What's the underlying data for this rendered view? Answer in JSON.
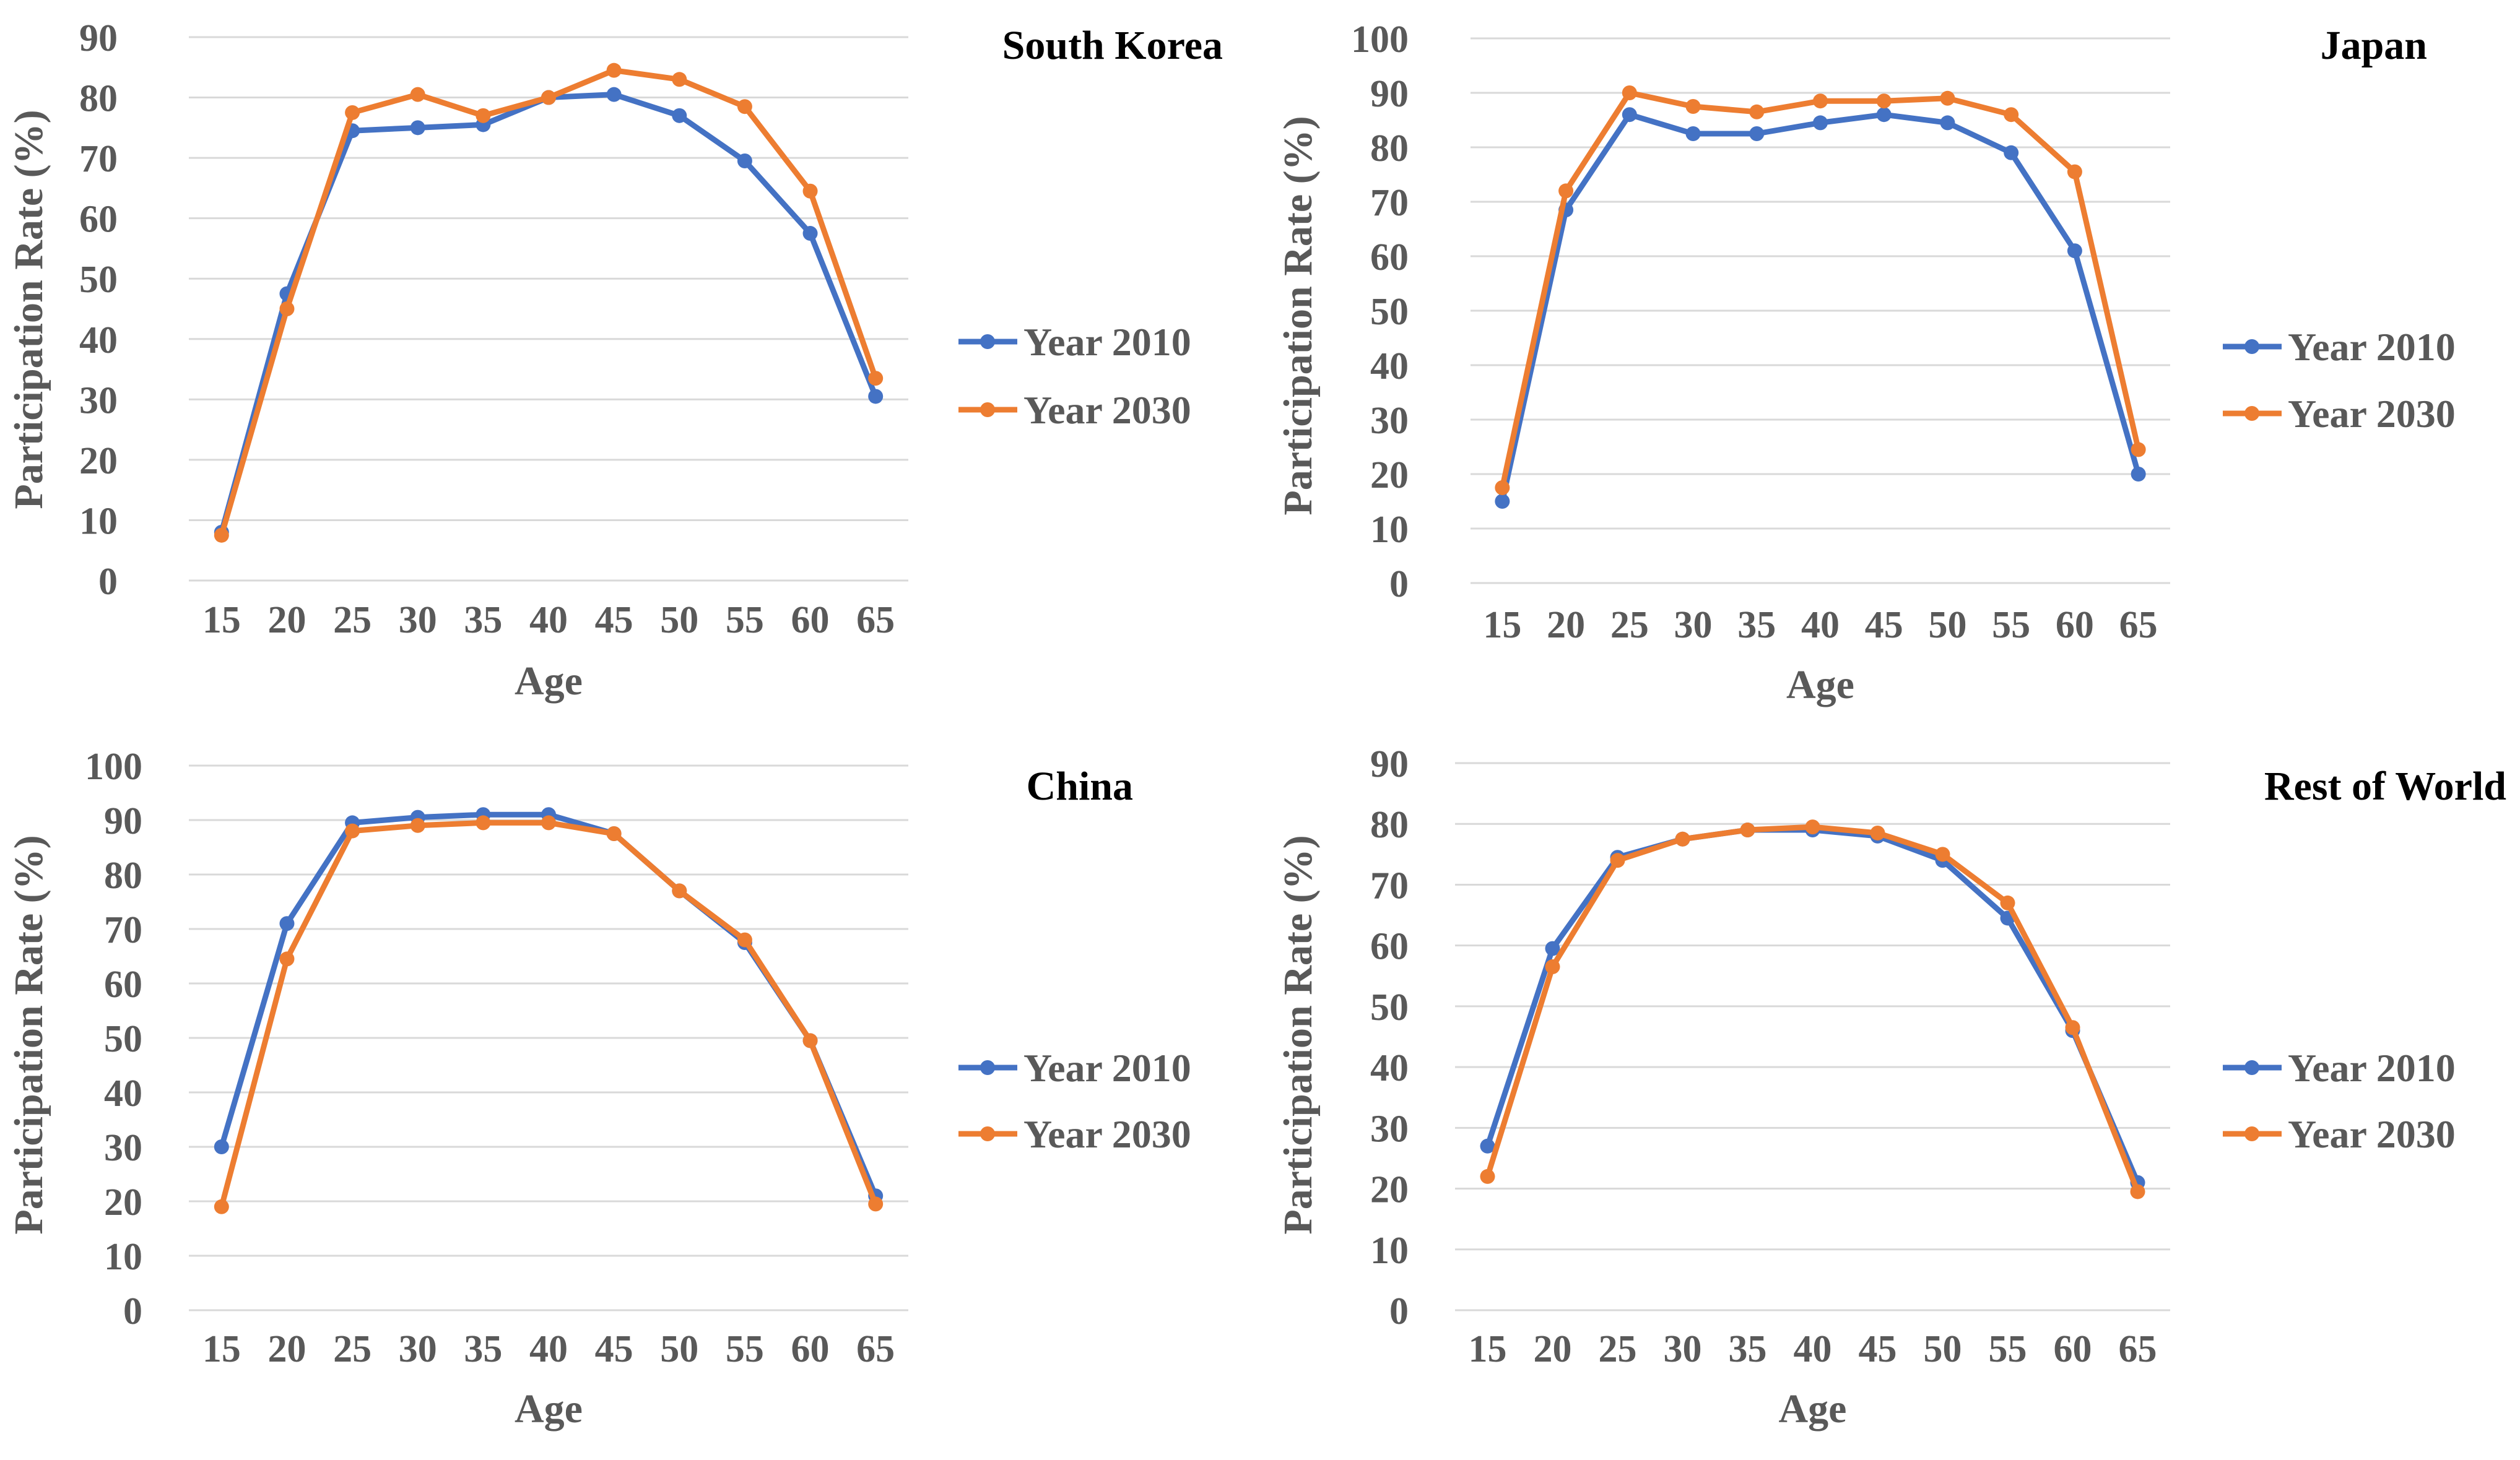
{
  "colors": {
    "year2010": "#4472C4",
    "year2030": "#ED7D31",
    "grid": "#D9D9D9",
    "text": "#595959",
    "title": "#000000"
  },
  "chart_data": [
    {
      "type": "line",
      "title": "South Korea",
      "xlabel": "Age",
      "ylabel": "Participation Rate (%)",
      "categories": [
        "15",
        "20",
        "25",
        "30",
        "35",
        "40",
        "45",
        "50",
        "55",
        "60",
        "65"
      ],
      "ylim": [
        0,
        90
      ],
      "yticks": [
        "0",
        "10",
        "20",
        "30",
        "40",
        "50",
        "60",
        "70",
        "80",
        "90"
      ],
      "grid": true,
      "legend": "right",
      "series": [
        {
          "name": "Year 2010",
          "values": [
            8,
            47.5,
            74.5,
            75,
            75.5,
            80,
            80.5,
            77,
            69.5,
            57.5,
            30.5
          ]
        },
        {
          "name": "Year 2030",
          "values": [
            7.5,
            45,
            77.5,
            80.5,
            77,
            80,
            84.5,
            83,
            78.5,
            64.5,
            33.5
          ]
        }
      ]
    },
    {
      "type": "line",
      "title": "Japan",
      "xlabel": "Age",
      "ylabel": "Participation Rate (%)",
      "categories": [
        "15",
        "20",
        "25",
        "30",
        "35",
        "40",
        "45",
        "50",
        "55",
        "60",
        "65"
      ],
      "ylim": [
        0,
        100
      ],
      "yticks": [
        "0",
        "10",
        "20",
        "30",
        "40",
        "50",
        "60",
        "70",
        "80",
        "90",
        "100"
      ],
      "grid": true,
      "legend": "right",
      "series": [
        {
          "name": "Year 2010",
          "values": [
            15,
            68.5,
            86,
            82.5,
            82.5,
            84.5,
            86,
            84.5,
            79,
            61,
            20
          ]
        },
        {
          "name": "Year 2030",
          "values": [
            17.5,
            72,
            90,
            87.5,
            86.5,
            88.5,
            88.5,
            89,
            86,
            75.5,
            24.5
          ]
        }
      ]
    },
    {
      "type": "line",
      "title": "China",
      "xlabel": "Age",
      "ylabel": "Participation Rate (%)",
      "categories": [
        "15",
        "20",
        "25",
        "30",
        "35",
        "40",
        "45",
        "50",
        "55",
        "60",
        "65"
      ],
      "ylim": [
        0,
        100
      ],
      "yticks": [
        "0",
        "10",
        "20",
        "30",
        "40",
        "50",
        "60",
        "70",
        "80",
        "90",
        "100"
      ],
      "grid": true,
      "legend": "right",
      "series": [
        {
          "name": "Year 2010",
          "values": [
            30,
            71,
            89.5,
            90.5,
            91,
            91,
            87.5,
            77,
            67.5,
            49.5,
            21
          ]
        },
        {
          "name": "Year 2030",
          "values": [
            19,
            64.5,
            88,
            89,
            89.5,
            89.5,
            87.5,
            77,
            68,
            49.5,
            19.5
          ]
        }
      ]
    },
    {
      "type": "line",
      "title": "Rest of World",
      "xlabel": "Age",
      "ylabel": "Participation Rate (%)",
      "categories": [
        "15",
        "20",
        "25",
        "30",
        "35",
        "40",
        "45",
        "50",
        "55",
        "60",
        "65"
      ],
      "ylim": [
        0,
        90
      ],
      "yticks": [
        "0",
        "10",
        "20",
        "30",
        "40",
        "50",
        "60",
        "70",
        "80",
        "90"
      ],
      "grid": true,
      "legend": "right",
      "series": [
        {
          "name": "Year 2010",
          "values": [
            27,
            59.5,
            74.5,
            77.5,
            79,
            79,
            78,
            74,
            64.5,
            46,
            21
          ]
        },
        {
          "name": "Year 2030",
          "values": [
            22,
            56.5,
            74,
            77.5,
            79,
            79.5,
            78.5,
            75,
            67,
            46.5,
            19.5
          ]
        }
      ]
    }
  ]
}
